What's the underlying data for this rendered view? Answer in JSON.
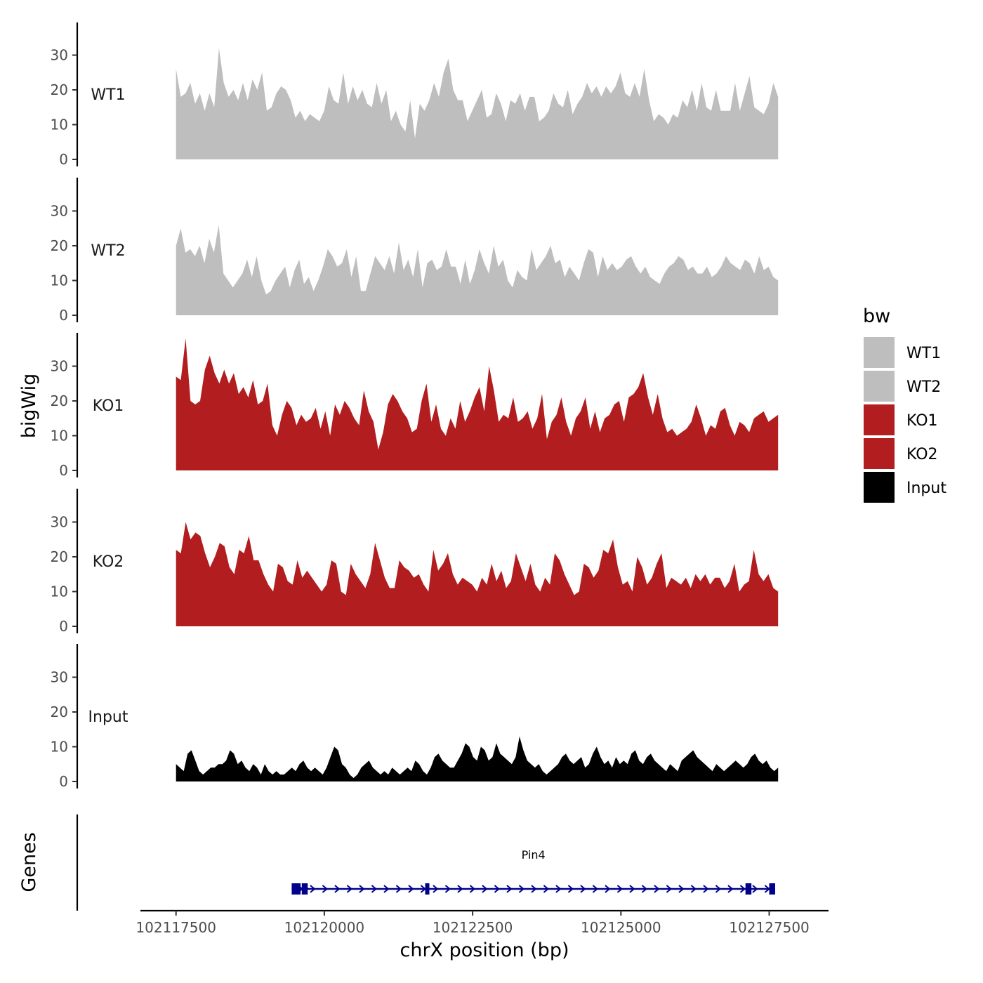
{
  "chart_data": {
    "type": "area",
    "ylabel": "bigWig",
    "xlabel": "chrX position (bp)",
    "xlim": [
      102116900,
      102128500
    ],
    "x_ticks": [
      102117500,
      102120000,
      102122500,
      102125000,
      102127500
    ],
    "ylim": [
      0,
      38
    ],
    "y_ticks": [
      0,
      10,
      20,
      30
    ],
    "legend": {
      "title": "bw",
      "position": "right",
      "entries": [
        {
          "label": "WT1",
          "color": "#bebebe"
        },
        {
          "label": "WT2",
          "color": "#bebebe"
        },
        {
          "label": "KO1",
          "color": "#b21e1f"
        },
        {
          "label": "KO2",
          "color": "#b21e1f"
        },
        {
          "label": "Input",
          "color": "#000000"
        }
      ]
    },
    "tracks": [
      {
        "name": "WT1",
        "color": "#bebebe",
        "x_start": 102117500,
        "x_end": 102127650,
        "values": [
          26,
          18,
          19,
          22,
          16,
          19,
          14,
          19,
          15,
          32,
          22,
          18,
          20,
          17,
          22,
          17,
          23,
          20,
          25,
          14,
          15,
          19,
          21,
          20,
          17,
          12,
          14,
          11,
          13,
          12,
          11,
          14,
          21,
          17,
          16,
          25,
          16,
          21,
          17,
          20,
          16,
          15,
          22,
          16,
          20,
          11,
          14,
          10,
          8,
          17,
          6,
          16,
          14,
          17,
          22,
          18,
          25,
          29,
          20,
          17,
          17,
          11,
          14,
          17,
          20,
          12,
          13,
          19,
          16,
          11,
          17,
          16,
          19,
          14,
          18,
          18,
          11,
          12,
          14,
          19,
          16,
          15,
          20,
          13,
          16,
          18,
          22,
          19,
          21,
          18,
          21,
          19,
          21,
          25,
          19,
          18,
          22,
          18,
          26,
          17,
          11,
          13,
          12,
          10,
          13,
          12,
          17,
          15,
          20,
          14,
          22,
          15,
          14,
          20,
          14,
          14,
          14,
          22,
          14,
          19,
          24,
          15,
          14,
          13,
          16,
          22,
          18
        ]
      },
      {
        "name": "WT2",
        "color": "#bebebe",
        "x_start": 102117500,
        "x_end": 102127650,
        "values": [
          20,
          25,
          18,
          19,
          17,
          20,
          15,
          22,
          18,
          26,
          12,
          10,
          8,
          10,
          12,
          16,
          11,
          17,
          10,
          6,
          7,
          10,
          12,
          14,
          8,
          13,
          16,
          9,
          11,
          7,
          10,
          14,
          19,
          17,
          14,
          15,
          19,
          11,
          17,
          7,
          7,
          12,
          17,
          15,
          13,
          17,
          12,
          21,
          13,
          16,
          11,
          19,
          8,
          15,
          16,
          13,
          14,
          19,
          14,
          14,
          9,
          16,
          9,
          13,
          19,
          15,
          12,
          20,
          14,
          16,
          10,
          8,
          13,
          11,
          10,
          19,
          13,
          15,
          17,
          20,
          15,
          16,
          11,
          14,
          12,
          10,
          15,
          19,
          18,
          11,
          17,
          13,
          15,
          13,
          14,
          16,
          17,
          14,
          12,
          14,
          11,
          10,
          9,
          12,
          14,
          15,
          17,
          16,
          13,
          14,
          12,
          12,
          14,
          11,
          12,
          14,
          17,
          15,
          14,
          13,
          16,
          15,
          12,
          17,
          13,
          14,
          11,
          10
        ]
      },
      {
        "name": "KO1",
        "color": "#b21e1f",
        "x_start": 102117500,
        "x_end": 102127650,
        "values": [
          27,
          26,
          38,
          20,
          19,
          20,
          29,
          33,
          28,
          25,
          29,
          25,
          28,
          22,
          24,
          21,
          26,
          19,
          20,
          25,
          13,
          10,
          16,
          20,
          18,
          13,
          16,
          14,
          15,
          18,
          12,
          17,
          10,
          19,
          16,
          20,
          18,
          15,
          13,
          23,
          17,
          14,
          6,
          11,
          19,
          22,
          20,
          17,
          15,
          11,
          12,
          20,
          25,
          14,
          19,
          12,
          10,
          15,
          12,
          20,
          14,
          17,
          21,
          24,
          17,
          30,
          23,
          14,
          16,
          15,
          21,
          14,
          15,
          17,
          12,
          15,
          22,
          9,
          14,
          16,
          21,
          14,
          10,
          15,
          17,
          21,
          12,
          17,
          11,
          15,
          16,
          19,
          20,
          14,
          21,
          22,
          24,
          28,
          21,
          16,
          22,
          15,
          11,
          12,
          10,
          11,
          12,
          14,
          19,
          15,
          10,
          13,
          12,
          17,
          18,
          13,
          10,
          14,
          13,
          11,
          15,
          16,
          17,
          14,
          15,
          16
        ]
      },
      {
        "name": "KO2",
        "color": "#b21e1f",
        "x_start": 102117500,
        "x_end": 102127650,
        "values": [
          22,
          21,
          30,
          25,
          27,
          26,
          21,
          17,
          20,
          24,
          23,
          17,
          15,
          22,
          21,
          26,
          19,
          19,
          15,
          12,
          10,
          18,
          17,
          13,
          12,
          19,
          14,
          16,
          14,
          12,
          10,
          12,
          19,
          18,
          10,
          9,
          18,
          15,
          13,
          11,
          15,
          24,
          19,
          14,
          11,
          11,
          19,
          17,
          16,
          14,
          15,
          12,
          10,
          22,
          16,
          18,
          21,
          15,
          12,
          14,
          13,
          12,
          10,
          14,
          12,
          18,
          13,
          16,
          11,
          13,
          21,
          17,
          13,
          18,
          12,
          10,
          14,
          12,
          21,
          19,
          15,
          12,
          9,
          10,
          18,
          17,
          14,
          16,
          22,
          21,
          25,
          17,
          12,
          13,
          10,
          20,
          17,
          12,
          14,
          18,
          21,
          11,
          14,
          13,
          12,
          14,
          11,
          15,
          13,
          15,
          12,
          14,
          14,
          11,
          13,
          18,
          10,
          12,
          13,
          22,
          15,
          13,
          15,
          11,
          10
        ]
      },
      {
        "name": "Input",
        "color": "#000000",
        "x_start": 102117500,
        "x_end": 102127650,
        "values": [
          5,
          4,
          3,
          8,
          9,
          6,
          3,
          2,
          3,
          4,
          4,
          5,
          5,
          6,
          9,
          8,
          5,
          6,
          4,
          3,
          5,
          4,
          2,
          5,
          3,
          2,
          3,
          2,
          2,
          3,
          4,
          3,
          5,
          6,
          4,
          3,
          4,
          3,
          2,
          4,
          7,
          10,
          9,
          5,
          4,
          2,
          1,
          2,
          4,
          5,
          6,
          4,
          3,
          2,
          3,
          2,
          4,
          3,
          2,
          3,
          4,
          3,
          6,
          5,
          3,
          2,
          4,
          7,
          8,
          6,
          5,
          4,
          4,
          6,
          8,
          11,
          10,
          7,
          6,
          10,
          9,
          6,
          7,
          11,
          8,
          7,
          6,
          5,
          7,
          13,
          9,
          6,
          5,
          4,
          5,
          3,
          2,
          3,
          4,
          5,
          7,
          8,
          6,
          5,
          6,
          7,
          4,
          5,
          8,
          10,
          7,
          5,
          6,
          4,
          7,
          5,
          6,
          5,
          8,
          9,
          6,
          5,
          7,
          8,
          6,
          5,
          4,
          3,
          5,
          4,
          3,
          6,
          7,
          8,
          9,
          7,
          6,
          5,
          4,
          3,
          5,
          4,
          3,
          4,
          5,
          6,
          5,
          4,
          5,
          7,
          8,
          6,
          5,
          6,
          4,
          3,
          4
        ]
      }
    ],
    "genes": [
      {
        "name": "Pin4",
        "color": "#00008b",
        "start": 102119450,
        "end": 102127600,
        "strand": "+",
        "exons": [
          [
            102119450,
            102119600
          ],
          [
            102119620,
            102119720
          ],
          [
            102121700,
            102121760
          ],
          [
            102127100,
            102127200
          ],
          [
            102127500,
            102127600
          ]
        ]
      }
    ],
    "panel_title_genes": "Genes"
  }
}
